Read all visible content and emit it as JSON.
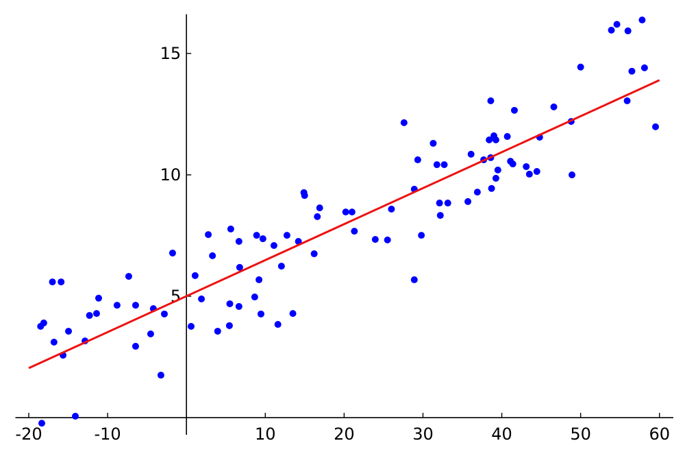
{
  "chart_data": {
    "type": "scatter",
    "xlim": [
      -21,
      61.5
    ],
    "ylim": [
      -0.3,
      16.7
    ],
    "xticks": [
      -20,
      -10,
      10,
      20,
      30,
      40,
      50,
      60
    ],
    "yticks": [
      5,
      10,
      15
    ],
    "series": [
      {
        "mode": "markers",
        "color": "#0000ff",
        "x": [
          -18.35,
          -18.5,
          -18.1,
          -17.0,
          -15.9,
          -16.8,
          -15.65,
          -14.96,
          -14.09,
          -12.87,
          -12.3,
          -11.4,
          -11.14,
          -8.8,
          -7.32,
          -6.45,
          -6.45,
          -4.54,
          -4.2,
          -3.24,
          -2.8,
          -1.76,
          0.59,
          1.1,
          1.9,
          2.77,
          3.3,
          3.96,
          5.45,
          5.5,
          5.62,
          6.66,
          6.66,
          6.75,
          8.66,
          8.9,
          9.2,
          9.45,
          9.7,
          11.1,
          11.6,
          12.05,
          12.75,
          13.5,
          14.2,
          14.9,
          14.99,
          16.2,
          16.6,
          16.9,
          20.2,
          21.0,
          21.3,
          23.95,
          25.5,
          26.0,
          27.6,
          28.9,
          28.9,
          29.34,
          29.8,
          31.3,
          31.77,
          32.1,
          32.2,
          32.7,
          33.15,
          35.7,
          36.1,
          36.9,
          37.7,
          38.4,
          38.6,
          38.6,
          38.7,
          39.0,
          39.25,
          39.25,
          39.5,
          40.7,
          41.1,
          41.4,
          41.6,
          43.1,
          43.5,
          44.45,
          44.8,
          46.6,
          48.8,
          48.9,
          50.0,
          53.9,
          54.6,
          56.0,
          55.9,
          56.5,
          57.8,
          58.1,
          59.5
        ],
        "values": [
          -0.23,
          3.76,
          3.9,
          5.59,
          5.59,
          3.11,
          2.57,
          3.56,
          0.06,
          3.16,
          4.21,
          4.29,
          4.92,
          4.63,
          5.82,
          4.63,
          2.94,
          3.45,
          4.49,
          1.75,
          4.27,
          6.78,
          3.76,
          5.85,
          4.89,
          7.54,
          6.67,
          3.56,
          3.79,
          4.69,
          7.77,
          7.26,
          4.58,
          6.19,
          4.97,
          7.51,
          5.68,
          4.27,
          7.37,
          7.09,
          3.84,
          6.24,
          7.51,
          4.29,
          7.26,
          9.27,
          9.15,
          6.75,
          8.28,
          8.64,
          8.47,
          8.47,
          7.68,
          7.34,
          7.32,
          8.59,
          12.15,
          5.68,
          9.41,
          10.62,
          7.51,
          11.3,
          10.42,
          8.84,
          8.33,
          10.42,
          8.84,
          8.9,
          10.85,
          9.29,
          10.62,
          11.44,
          13.05,
          10.71,
          9.44,
          11.61,
          11.44,
          9.86,
          10.2,
          11.58,
          10.56,
          10.45,
          12.66,
          10.34,
          10.03,
          10.14,
          11.55,
          12.8,
          12.2,
          10.0,
          14.44,
          15.96,
          16.2,
          15.93,
          13.05,
          14.27,
          16.38,
          14.41,
          11.98
        ]
      },
      {
        "mode": "line",
        "color": "#ee1111",
        "x": [
          -20,
          60
        ],
        "values": [
          2.04,
          13.9
        ]
      }
    ]
  }
}
